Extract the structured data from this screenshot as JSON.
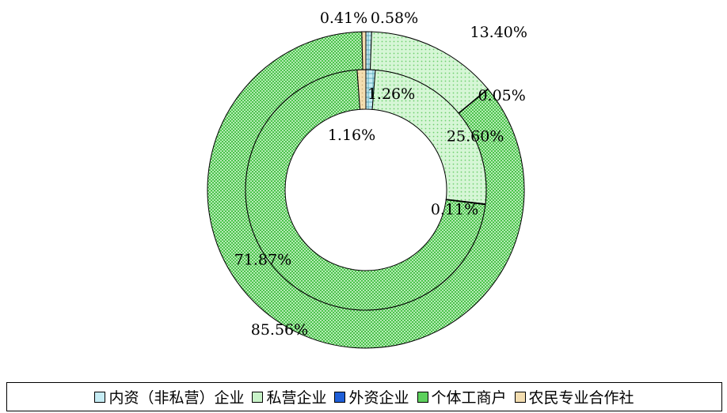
{
  "chart_data": {
    "type": "donut",
    "categories": [
      "内资（非私营）企业",
      "私营企业",
      "外资企业",
      "个体工商户",
      "农民专业合作社"
    ],
    "colors": [
      "#c6ecf4",
      "#c8f2c8",
      "#1f5fd8",
      "#5dd05d",
      "#f3ddb0"
    ],
    "series": [
      {
        "ring": "inner",
        "values": [
          1.26,
          25.6,
          0.11,
          71.87,
          1.16
        ],
        "labels": [
          "1.26%",
          "25.60%",
          "0.11%",
          "71.87%",
          "1.16%"
        ]
      },
      {
        "ring": "outer",
        "values": [
          0.58,
          13.4,
          0.05,
          85.56,
          0.41
        ],
        "labels": [
          "0.58%",
          "13.40%",
          "0.05%",
          "85.56%",
          "0.41%"
        ]
      }
    ],
    "legend": {
      "position": "bottom",
      "items": [
        "内资（非私营）企业",
        "私营企业",
        "外资企业",
        "个体工商户",
        "农民专业合作社"
      ]
    }
  }
}
